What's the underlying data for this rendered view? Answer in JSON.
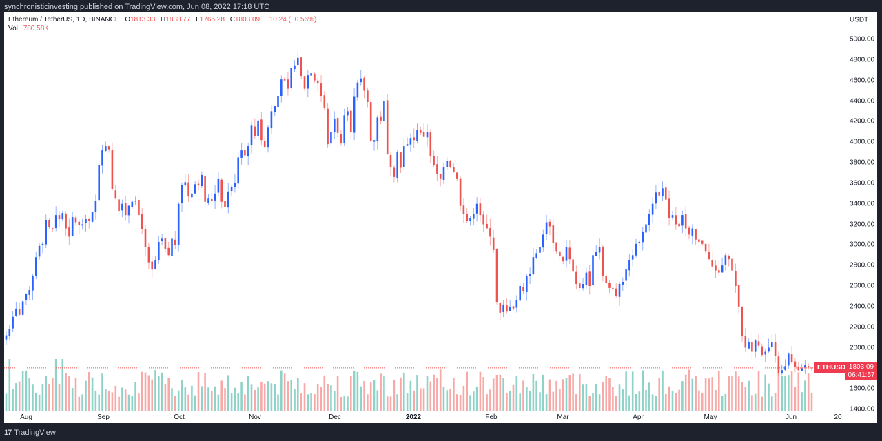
{
  "header": {
    "publish_info": "synchronisticinvesting published on TradingView.com, Jun 08, 2022 17:18 UTC"
  },
  "legend": {
    "symbol": "Ethereum / TetherUS, 1D, BINANCE",
    "open_label": "O",
    "open": "1813.33",
    "high_label": "H",
    "high": "1838.77",
    "low_label": "L",
    "low": "1765.28",
    "close_label": "C",
    "close": "1803.09",
    "change": "−10.24 (−0.56%)",
    "vol_label": "Vol",
    "vol": "780.58K"
  },
  "price_axis": {
    "currency": "USDT",
    "ticks": [
      "5000.00",
      "4800.00",
      "4600.00",
      "4400.00",
      "4200.00",
      "4000.00",
      "3800.00",
      "3600.00",
      "3400.00",
      "3200.00",
      "3000.00",
      "2800.00",
      "2600.00",
      "2400.00",
      "2200.00",
      "2000.00",
      "1600.00",
      "1400.00"
    ]
  },
  "time_axis": {
    "ticks": [
      "Aug",
      "Sep",
      "Oct",
      "Nov",
      "Dec",
      "2022",
      "Feb",
      "Mar",
      "Apr",
      "May",
      "Jun",
      "20"
    ]
  },
  "current_price": {
    "symbol": "ETHUSDT",
    "price": "1803.09",
    "countdown": "06:41:57"
  },
  "footer": {
    "logo_mark": "17",
    "brand": "TradingView"
  },
  "colors": {
    "up": "#2962ff",
    "down": "#ef5350",
    "vol_up": "#8fd3c8",
    "vol_down": "#f7a9a7",
    "price_line": "#ef5350",
    "badge": "#ef3b4f"
  },
  "chart_data": {
    "type": "candlestick",
    "title": "Ethereum / TetherUS, 1D, BINANCE",
    "xlabel": "",
    "ylabel": "USDT",
    "ylim": [
      1400,
      5000
    ],
    "x_ticks": [
      "Aug",
      "Sep",
      "Oct",
      "Nov",
      "Dec",
      "2022",
      "Feb",
      "Mar",
      "Apr",
      "May",
      "Jun"
    ],
    "last": {
      "open": 1813.33,
      "high": 1838.77,
      "low": 1765.28,
      "close": 1803.09,
      "volume": "780.58K"
    },
    "closes_approx": [
      2120,
      2180,
      2300,
      2380,
      2320,
      2450,
      2520,
      2560,
      2700,
      2880,
      2990,
      3010,
      3240,
      3170,
      3160,
      3290,
      3250,
      3310,
      3160,
      3080,
      3270,
      3220,
      3190,
      3200,
      3250,
      3230,
      3320,
      3430,
      3780,
      3920,
      3960,
      3930,
      3540,
      3450,
      3330,
      3400,
      3290,
      3380,
      3420,
      3430,
      3290,
      3150,
      2980,
      2830,
      2760,
      2850,
      3030,
      3060,
      2960,
      2900,
      3060,
      3000,
      3400,
      3580,
      3610,
      3470,
      3500,
      3590,
      3580,
      3680,
      3420,
      3450,
      3430,
      3500,
      3640,
      3420,
      3370,
      3520,
      3560,
      3600,
      3850,
      3920,
      3870,
      3960,
      4160,
      4060,
      4210,
      4020,
      3950,
      4140,
      4300,
      4350,
      4450,
      4610,
      4600,
      4520,
      4720,
      4740,
      4820,
      4640,
      4520,
      4650,
      4670,
      4600,
      4570,
      4450,
      4330,
      3980,
      4100,
      4230,
      4090,
      3990,
      4260,
      4300,
      4100,
      4440,
      4580,
      4620,
      4500,
      4390,
      4010,
      4020,
      4240,
      4210,
      4400,
      3880,
      3760,
      3660,
      3900,
      3750,
      3960,
      3980,
      4040,
      4020,
      4120,
      4090,
      4050,
      4100,
      3860,
      3780,
      3690,
      3640,
      3760,
      3820,
      3760,
      3710,
      3640,
      3380,
      3300,
      3230,
      3260,
      3300,
      3400,
      3290,
      3200,
      3160,
      3080,
      2950,
      2440,
      2340,
      2420,
      2350,
      2400,
      2380,
      2460,
      2600,
      2550,
      2700,
      2720,
      2880,
      2920,
      2980,
      3100,
      3220,
      3180,
      3020,
      2940,
      2890,
      2840,
      2980,
      2860,
      2740,
      2620,
      2580,
      2620,
      2730,
      2600,
      2900,
      2930,
      2980,
      2700,
      2630,
      2580,
      2580,
      2500,
      2620,
      2640,
      2760,
      2850,
      2900,
      3010,
      3030,
      3130,
      3200,
      3300,
      3400,
      3510,
      3480,
      3550,
      3440,
      3260,
      3290,
      3200,
      3180,
      3290,
      3160,
      3100,
      3160,
      3050,
      3030,
      3010,
      2940,
      2860,
      2790,
      2750,
      2730,
      2800,
      2900,
      2860,
      2750,
      2600,
      2400,
      2110,
      2000,
      2050,
      1960,
      2070,
      2020,
      1930,
      1960,
      2000,
      2050,
      1920,
      1750,
      1780,
      1820,
      1940,
      1860,
      1810,
      1780,
      1800,
      1830,
      1810,
      1803
    ]
  }
}
